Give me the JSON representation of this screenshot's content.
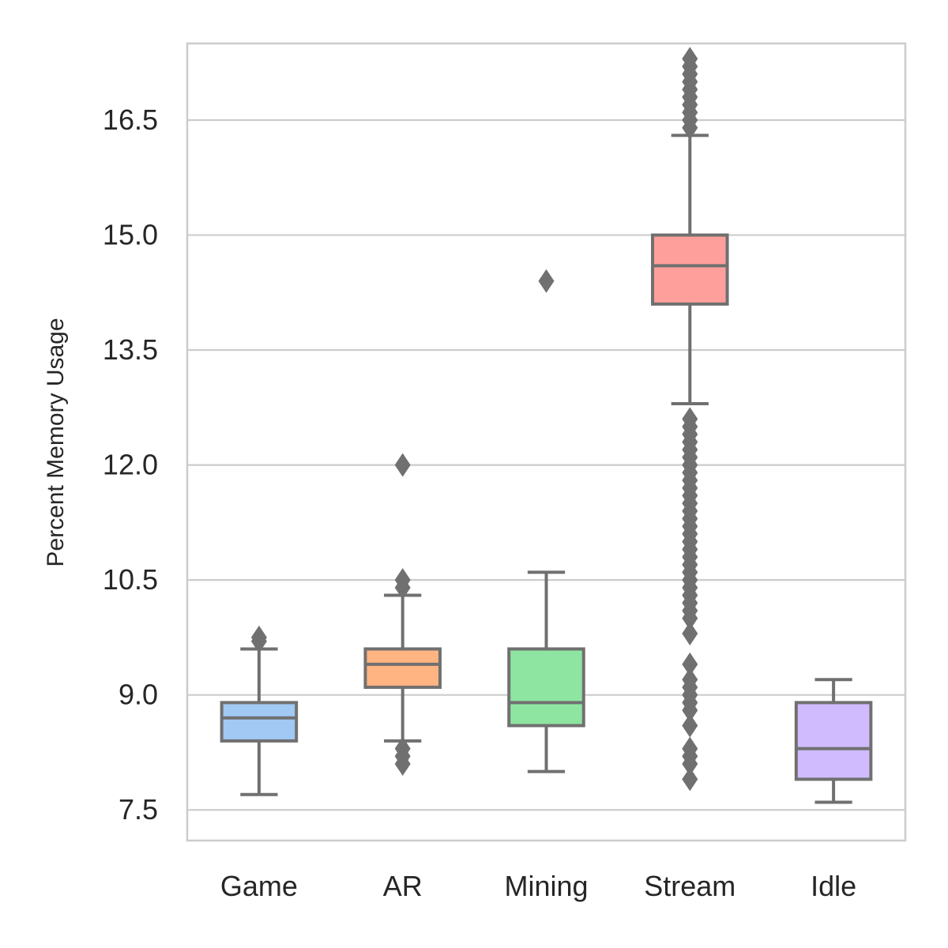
{
  "chart_data": {
    "type": "box",
    "title": "",
    "xlabel": "",
    "ylabel": "Percent Memory Usage",
    "ylim": [
      7.1,
      17.5
    ],
    "yticks": [
      7.5,
      9.0,
      10.5,
      12.0,
      13.5,
      15.0,
      16.5
    ],
    "ytick_labels": [
      "7.5",
      "9.0",
      "10.5",
      "12.0",
      "13.5",
      "15.0",
      "16.5"
    ],
    "grid": "horizontal",
    "legend": "none",
    "categories": [
      "Game",
      "AR",
      "Mining",
      "Stream",
      "Idle"
    ],
    "boxes": [
      {
        "category": "Game",
        "color": "#a1c9f4",
        "whisker_low": 7.7,
        "q1": 8.4,
        "median": 8.7,
        "q3": 8.9,
        "whisker_high": 9.6,
        "outliers": [
          9.7,
          9.75
        ]
      },
      {
        "category": "AR",
        "color": "#ffb482",
        "whisker_low": 8.4,
        "q1": 9.1,
        "median": 9.4,
        "q3": 9.6,
        "whisker_high": 10.3,
        "outliers": [
          8.1,
          8.2,
          8.3,
          10.4,
          10.5,
          12.0
        ]
      },
      {
        "category": "Mining",
        "color": "#8de5a1",
        "whisker_low": 8.0,
        "q1": 8.6,
        "median": 8.9,
        "q3": 9.6,
        "whisker_high": 10.6,
        "outliers": [
          14.4
        ]
      },
      {
        "category": "Stream",
        "color": "#ff9f9b",
        "whisker_low": 12.8,
        "q1": 14.1,
        "median": 14.6,
        "q3": 15.0,
        "whisker_high": 16.3,
        "outliers": [
          7.9,
          8.1,
          8.2,
          8.3,
          8.6,
          8.8,
          8.9,
          9.0,
          9.1,
          9.2,
          9.4,
          9.8,
          10.0,
          10.1,
          10.2,
          10.3,
          10.4,
          10.5,
          10.6,
          10.7,
          10.8,
          10.9,
          11.0,
          11.1,
          11.2,
          11.3,
          11.4,
          11.5,
          11.6,
          11.7,
          11.8,
          11.9,
          12.0,
          12.1,
          12.2,
          12.3,
          12.4,
          12.5,
          12.6,
          16.4,
          16.5,
          16.6,
          16.7,
          16.8,
          16.9,
          17.0,
          17.1,
          17.2,
          17.3
        ]
      },
      {
        "category": "Idle",
        "color": "#d0bbff",
        "whisker_low": 7.6,
        "q1": 7.9,
        "median": 8.3,
        "q3": 8.9,
        "whisker_high": 9.2,
        "outliers": []
      }
    ]
  }
}
